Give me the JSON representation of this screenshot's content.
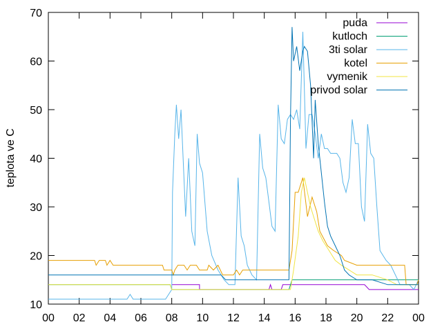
{
  "chart_data": {
    "type": "line",
    "title": "",
    "xlabel": "",
    "ylabel": "teplota ve C",
    "xlim": [
      0,
      24
    ],
    "ylim": [
      10,
      70
    ],
    "x_tick_labels": [
      "00",
      "02",
      "04",
      "06",
      "08",
      "10",
      "12",
      "14",
      "16",
      "18",
      "20",
      "22",
      "00"
    ],
    "y_ticks": [
      10,
      20,
      30,
      40,
      50,
      60,
      70
    ],
    "grid": false,
    "legend_position": "top-right",
    "series": [
      {
        "name": "puda",
        "color": "#9400d3",
        "points": [
          [
            8.0,
            14
          ],
          [
            9.8,
            14
          ],
          [
            9.8,
            13
          ],
          [
            14.3,
            13
          ],
          [
            14.4,
            14
          ],
          [
            14.5,
            13
          ],
          [
            15.1,
            13
          ],
          [
            15.2,
            14
          ],
          [
            20.5,
            14
          ],
          [
            20.8,
            13
          ],
          [
            24,
            13
          ]
        ]
      },
      {
        "name": "kutloch",
        "color": "#009e73",
        "points": [
          [
            0,
            14
          ],
          [
            7.9,
            14
          ],
          [
            8.0,
            13
          ],
          [
            15.6,
            13
          ],
          [
            15.8,
            15
          ],
          [
            24,
            15
          ]
        ]
      },
      {
        "name": "3ti solar",
        "color": "#56b4e9",
        "points": [
          [
            0,
            11
          ],
          [
            5.1,
            11
          ],
          [
            5.3,
            12
          ],
          [
            5.5,
            11
          ],
          [
            7.6,
            11
          ],
          [
            7.8,
            12
          ],
          [
            8.0,
            13
          ],
          [
            8.05,
            33
          ],
          [
            8.2,
            45
          ],
          [
            8.3,
            51
          ],
          [
            8.45,
            44
          ],
          [
            8.6,
            50
          ],
          [
            8.9,
            28
          ],
          [
            9.1,
            40
          ],
          [
            9.3,
            25
          ],
          [
            9.5,
            22
          ],
          [
            9.65,
            45
          ],
          [
            9.8,
            39
          ],
          [
            10.0,
            37
          ],
          [
            10.3,
            25
          ],
          [
            10.6,
            20
          ],
          [
            11.0,
            17
          ],
          [
            11.4,
            15
          ],
          [
            11.7,
            14
          ],
          [
            12.1,
            14
          ],
          [
            12.3,
            36
          ],
          [
            12.5,
            24
          ],
          [
            12.7,
            22
          ],
          [
            12.9,
            18
          ],
          [
            13.2,
            16
          ],
          [
            13.5,
            15
          ],
          [
            13.7,
            45
          ],
          [
            13.9,
            38
          ],
          [
            14.1,
            36
          ],
          [
            14.3,
            31
          ],
          [
            14.5,
            26
          ],
          [
            14.7,
            25
          ],
          [
            14.9,
            51
          ],
          [
            15.1,
            44
          ],
          [
            15.3,
            43
          ],
          [
            15.5,
            48
          ],
          [
            15.7,
            49
          ],
          [
            15.9,
            48
          ],
          [
            16.1,
            50
          ],
          [
            16.3,
            46
          ],
          [
            16.5,
            66
          ],
          [
            16.7,
            42
          ],
          [
            16.9,
            49
          ],
          [
            17.1,
            49
          ],
          [
            17.3,
            45
          ],
          [
            17.5,
            40
          ],
          [
            17.7,
            45
          ],
          [
            17.9,
            42
          ],
          [
            18.1,
            42
          ],
          [
            18.3,
            41
          ],
          [
            18.5,
            41
          ],
          [
            18.7,
            41
          ],
          [
            18.9,
            40
          ],
          [
            19.1,
            35
          ],
          [
            19.3,
            33
          ],
          [
            19.5,
            36
          ],
          [
            19.7,
            48
          ],
          [
            19.9,
            43
          ],
          [
            20.1,
            43
          ],
          [
            20.3,
            30
          ],
          [
            20.5,
            27
          ],
          [
            20.7,
            47
          ],
          [
            20.9,
            41
          ],
          [
            21.1,
            40
          ],
          [
            21.3,
            30
          ],
          [
            21.5,
            21
          ],
          [
            21.7,
            20
          ],
          [
            21.9,
            19
          ],
          [
            22.2,
            18
          ],
          [
            22.5,
            16
          ],
          [
            22.8,
            14
          ],
          [
            23.1,
            14
          ],
          [
            23.4,
            14
          ],
          [
            23.7,
            13
          ],
          [
            24,
            15
          ]
        ]
      },
      {
        "name": "kotel",
        "color": "#e69f00",
        "points": [
          [
            0,
            19
          ],
          [
            3.0,
            19
          ],
          [
            3.1,
            18
          ],
          [
            3.3,
            19
          ],
          [
            3.7,
            19
          ],
          [
            3.8,
            18
          ],
          [
            4.0,
            19
          ],
          [
            4.2,
            18
          ],
          [
            7.4,
            18
          ],
          [
            7.5,
            17
          ],
          [
            8.0,
            17
          ],
          [
            8.1,
            16
          ],
          [
            8.2,
            17
          ],
          [
            8.4,
            18
          ],
          [
            8.8,
            18
          ],
          [
            9.0,
            17
          ],
          [
            9.2,
            18
          ],
          [
            9.6,
            18
          ],
          [
            9.8,
            17
          ],
          [
            10.3,
            17
          ],
          [
            10.4,
            18
          ],
          [
            10.7,
            17
          ],
          [
            11.0,
            18
          ],
          [
            11.3,
            16
          ],
          [
            12.0,
            16
          ],
          [
            12.2,
            17
          ],
          [
            12.4,
            16
          ],
          [
            12.6,
            17
          ],
          [
            15.6,
            17
          ],
          [
            15.8,
            21
          ],
          [
            16.0,
            33
          ],
          [
            16.2,
            33
          ],
          [
            16.5,
            36
          ],
          [
            16.8,
            28
          ],
          [
            17.1,
            32
          ],
          [
            17.4,
            29
          ],
          [
            17.6,
            25
          ],
          [
            18.1,
            22
          ],
          [
            18.5,
            21
          ],
          [
            19.0,
            20
          ],
          [
            19.2,
            19
          ],
          [
            20.0,
            18
          ],
          [
            23.1,
            18
          ],
          [
            23.2,
            14
          ],
          [
            23.9,
            14
          ],
          [
            24,
            15
          ]
        ]
      },
      {
        "name": "vymenik",
        "color": "#f0e442",
        "points": [
          [
            0,
            14
          ],
          [
            7.9,
            14
          ],
          [
            8.0,
            13
          ],
          [
            15.7,
            13
          ],
          [
            15.9,
            17
          ],
          [
            16.2,
            24
          ],
          [
            16.4,
            33
          ],
          [
            16.6,
            36
          ],
          [
            16.8,
            33
          ],
          [
            17.0,
            30
          ],
          [
            17.2,
            28
          ],
          [
            17.5,
            25
          ],
          [
            17.8,
            23
          ],
          [
            18.2,
            21
          ],
          [
            18.6,
            19
          ],
          [
            19.0,
            18
          ],
          [
            19.5,
            17
          ],
          [
            20.0,
            16
          ],
          [
            21.0,
            16
          ],
          [
            22.0,
            15
          ],
          [
            22.6,
            14
          ],
          [
            24,
            14
          ]
        ]
      },
      {
        "name": "privod solar",
        "color": "#0072b2",
        "points": [
          [
            0,
            16
          ],
          [
            11.2,
            16
          ],
          [
            11.5,
            15
          ],
          [
            15.6,
            15
          ],
          [
            15.7,
            48
          ],
          [
            15.8,
            67
          ],
          [
            15.9,
            60
          ],
          [
            16.1,
            63
          ],
          [
            16.3,
            58
          ],
          [
            16.5,
            62
          ],
          [
            16.6,
            63
          ],
          [
            16.8,
            62
          ],
          [
            17.0,
            55
          ],
          [
            17.2,
            40
          ],
          [
            17.3,
            52
          ],
          [
            17.5,
            43
          ],
          [
            17.7,
            37
          ],
          [
            17.9,
            31
          ],
          [
            18.1,
            26
          ],
          [
            18.3,
            24
          ],
          [
            18.6,
            22
          ],
          [
            18.9,
            20
          ],
          [
            19.2,
            17
          ],
          [
            19.5,
            16
          ],
          [
            20.0,
            15
          ],
          [
            21.0,
            15
          ],
          [
            22.0,
            14
          ],
          [
            23.0,
            14
          ],
          [
            24,
            14
          ]
        ]
      }
    ]
  }
}
